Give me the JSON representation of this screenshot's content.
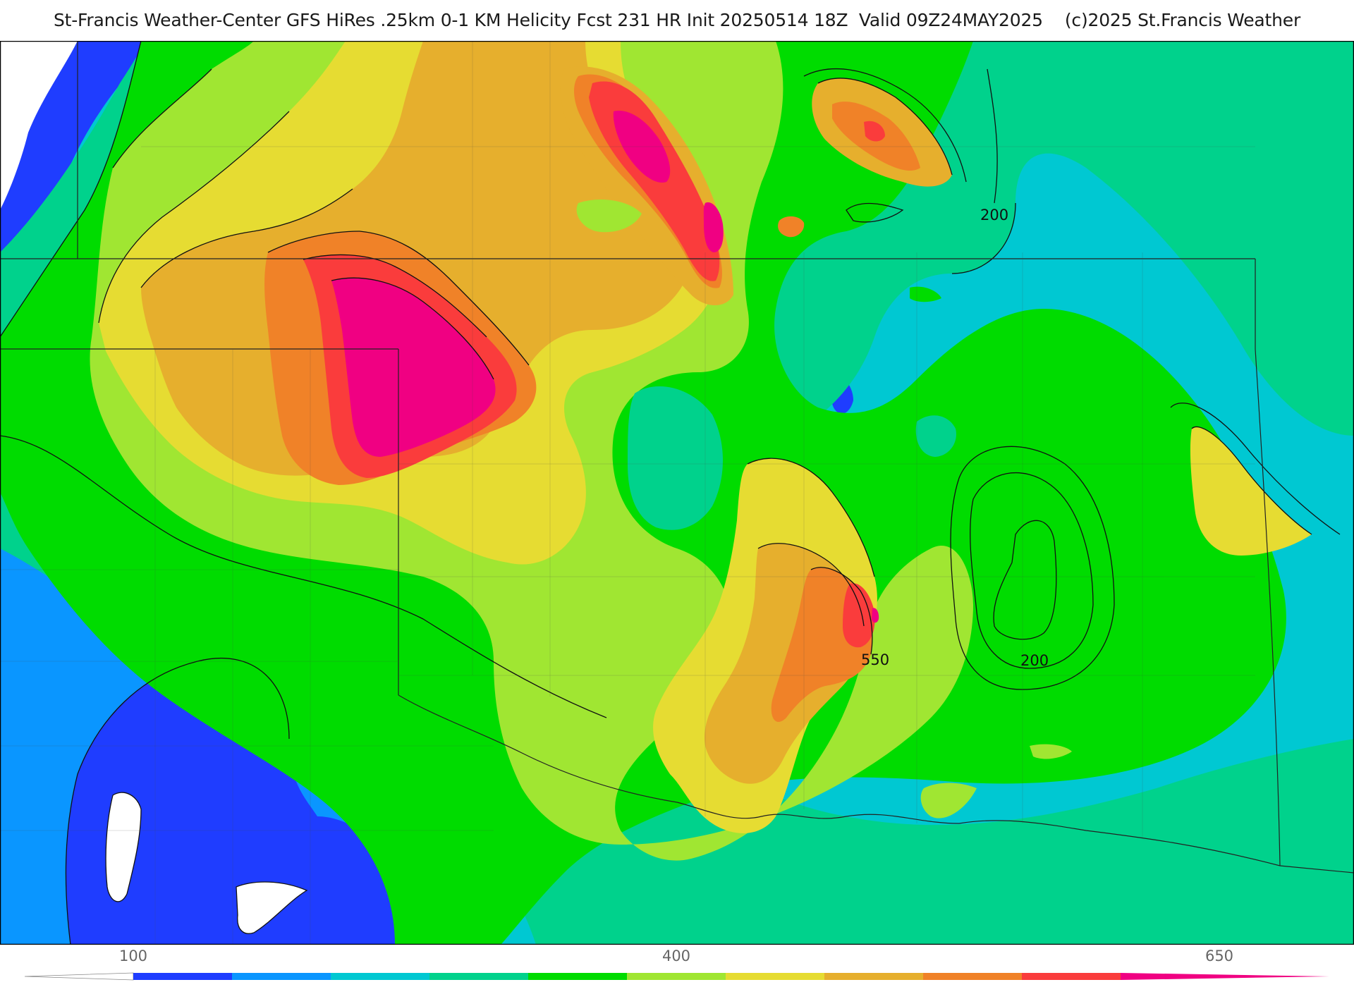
{
  "title": "St-Francis Weather-Center GFS HiRes .25km 0-1 KM Helicity Fcst 231 HR Init 20250514 18Z  Valid 09Z24MAY2025    (c)2025 St.Francis Weather",
  "contour_labels": [
    "200",
    "200",
    "550"
  ],
  "colorbar": {
    "tick_labels": [
      "100",
      "400",
      "650"
    ],
    "tick_values": [
      100,
      400,
      650
    ],
    "min": 50,
    "max": 700,
    "step": 50,
    "colors": [
      "#ffffff",
      "#1f3dff",
      "#0a96ff",
      "#00c8d2",
      "#00d28c",
      "#00dc00",
      "#a0e632",
      "#e6dc32",
      "#e6af2d",
      "#f08228",
      "#fa3c3c",
      "#f00082"
    ]
  },
  "map": {
    "field": "0-1 KM Helicity",
    "background_color": "#00c8d2"
  }
}
